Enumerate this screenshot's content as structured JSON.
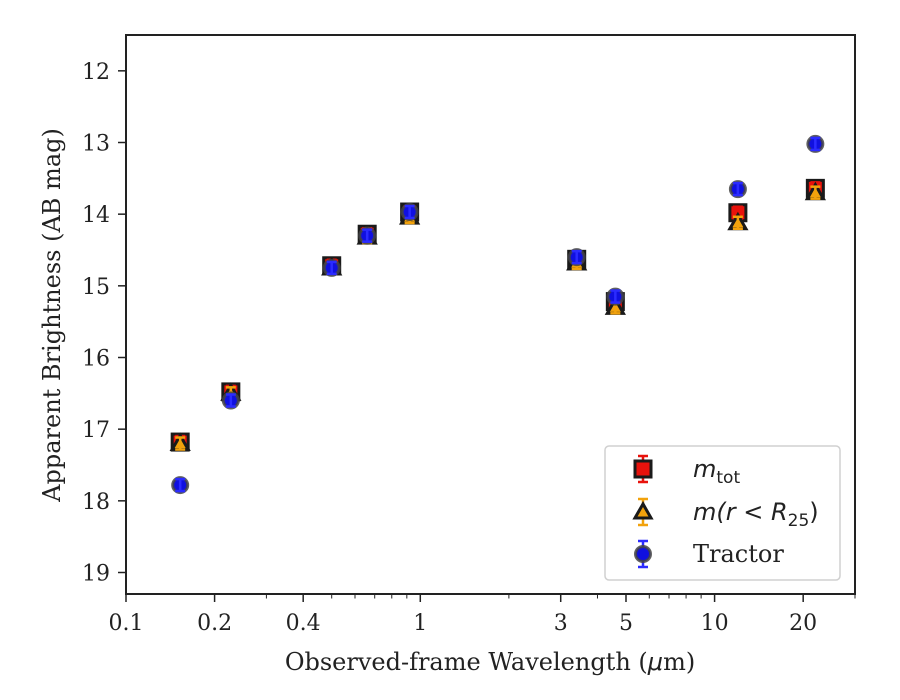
{
  "chart_data": {
    "type": "scatter",
    "xscale": "log",
    "xlim": [
      0.1,
      30
    ],
    "ylim": [
      19.3,
      11.5
    ],
    "y_inverted": true,
    "xlabel_text": "Observed-frame Wavelength (",
    "xlabel_mu": "μ",
    "xlabel_unit": "m)",
    "ylabel": "Apparent Brightness (AB mag)",
    "xticks": [
      {
        "value": 0.1,
        "label": "0.1"
      },
      {
        "value": 0.2,
        "label": "0.2"
      },
      {
        "value": 0.4,
        "label": "0.4"
      },
      {
        "value": 1,
        "label": "1"
      },
      {
        "value": 3,
        "label": "3"
      },
      {
        "value": 5,
        "label": "5"
      },
      {
        "value": 10,
        "label": "10"
      },
      {
        "value": 20,
        "label": "20"
      }
    ],
    "yticks": [
      {
        "value": 12,
        "label": "12"
      },
      {
        "value": 13,
        "label": "13"
      },
      {
        "value": 14,
        "label": "14"
      },
      {
        "value": 15,
        "label": "15"
      },
      {
        "value": 16,
        "label": "16"
      },
      {
        "value": 17,
        "label": "17"
      },
      {
        "value": 18,
        "label": "18"
      },
      {
        "value": 19,
        "label": "19"
      }
    ],
    "legend_position": "lower-right",
    "series": [
      {
        "name_main": "m",
        "name_sub": "tot",
        "marker": "square",
        "color": "#e8120c",
        "error_color": "#e8120c",
        "x": [
          0.1528,
          0.2271,
          0.5,
          0.66,
          0.92,
          3.4,
          4.6,
          12.0,
          22.0
        ],
        "y": [
          17.18,
          16.48,
          14.72,
          14.28,
          13.97,
          14.63,
          15.22,
          13.98,
          13.64
        ]
      },
      {
        "name_main": "m(r < R",
        "name_sub": "25",
        "name_end": ")",
        "marker": "triangle",
        "color": "#f2a20c",
        "error_color": "#f2a20c",
        "x": [
          0.1528,
          0.2271,
          0.5,
          0.66,
          0.92,
          3.4,
          4.6,
          12.0,
          22.0
        ],
        "y": [
          17.2,
          16.5,
          14.75,
          14.32,
          14.04,
          14.68,
          15.3,
          14.12,
          13.7
        ]
      },
      {
        "name": "Tractor",
        "marker": "circle",
        "color": "#1010e0",
        "error_color": "#2b2bff",
        "x": [
          0.1528,
          0.2271,
          0.5,
          0.66,
          0.92,
          3.4,
          4.6,
          12.0,
          22.0
        ],
        "y": [
          17.78,
          16.6,
          14.75,
          14.3,
          13.97,
          14.6,
          15.15,
          13.65,
          13.02
        ]
      }
    ]
  }
}
